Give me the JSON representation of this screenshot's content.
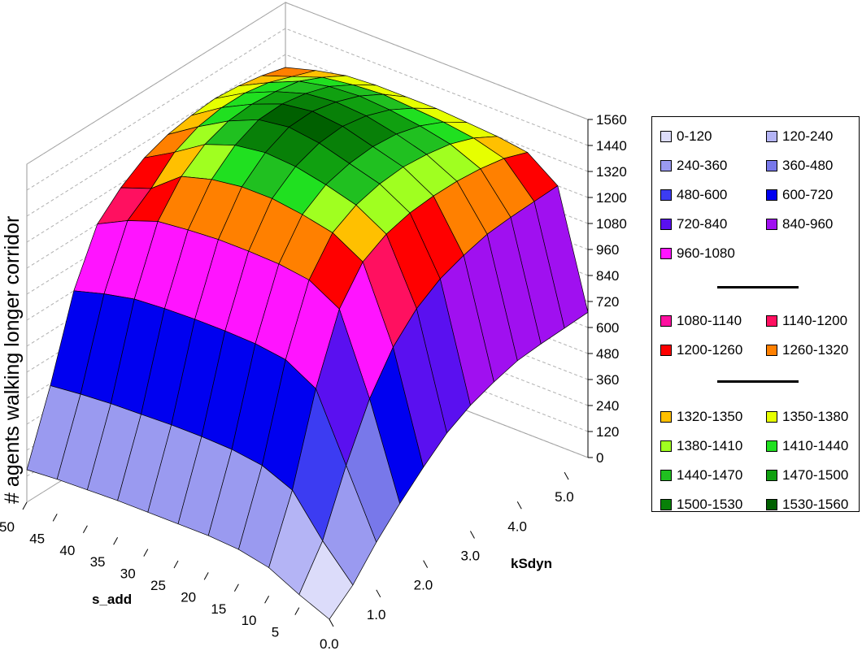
{
  "chart_data": {
    "type": "surface3d",
    "zlabel": "# agents walking longer  corridor",
    "xlabel": "s_add",
    "ylabel": "kSdyn",
    "x_ticks": [
      "50",
      "45",
      "40",
      "35",
      "30",
      "25",
      "20",
      "15",
      "10",
      "5"
    ],
    "y_ticks": [
      "0.0",
      "1.0",
      "2.0",
      "3.0",
      "4.0",
      "5.0"
    ],
    "z_ticks": [
      "0",
      "120",
      "240",
      "360",
      "480",
      "600",
      "720",
      "840",
      "960",
      "1080",
      "1200",
      "1320",
      "1440",
      "1560"
    ],
    "zlim": [
      0,
      1560
    ],
    "xlim": [
      0,
      50
    ],
    "ylim": [
      0,
      5.5
    ],
    "s_add_values": [
      0,
      5,
      10,
      15,
      20,
      25,
      30,
      35,
      40,
      45,
      50
    ],
    "kSdyn_values": [
      0,
      0.5,
      1,
      1.5,
      2,
      2.5,
      3,
      3.5,
      4,
      4.5,
      5,
      5.5
    ],
    "z_values": [
      [
        0,
        90,
        220,
        330,
        430,
        520,
        580,
        620,
        650,
        660,
        665,
        670
      ],
      [
        60,
        240,
        520,
        760,
        930,
        1040,
        1110,
        1150,
        1180,
        1190,
        1195,
        1200
      ],
      [
        130,
        420,
        820,
        1120,
        1270,
        1330,
        1360,
        1370,
        1370,
        1360,
        1340,
        1300
      ],
      [
        160,
        480,
        900,
        1200,
        1350,
        1410,
        1440,
        1450,
        1440,
        1420,
        1380,
        1320
      ],
      [
        170,
        500,
        920,
        1220,
        1380,
        1450,
        1480,
        1490,
        1480,
        1450,
        1400,
        1330
      ],
      [
        170,
        505,
        925,
        1225,
        1400,
        1480,
        1520,
        1530,
        1510,
        1470,
        1410,
        1340
      ],
      [
        170,
        505,
        925,
        1225,
        1400,
        1490,
        1540,
        1545,
        1520,
        1480,
        1420,
        1340
      ],
      [
        170,
        500,
        920,
        1215,
        1380,
        1470,
        1520,
        1525,
        1505,
        1470,
        1410,
        1340
      ],
      [
        165,
        495,
        910,
        1200,
        1340,
        1420,
        1460,
        1470,
        1460,
        1440,
        1390,
        1330
      ],
      [
        160,
        485,
        880,
        1150,
        1230,
        1330,
        1380,
        1400,
        1400,
        1380,
        1340,
        1300
      ],
      [
        150,
        470,
        840,
        1080,
        1180,
        1250,
        1290,
        1310,
        1320,
        1310,
        1290,
        1260
      ]
    ],
    "legend": [
      {
        "label": "0-120",
        "color": "#dcdcfa"
      },
      {
        "label": "120-240",
        "color": "#b4b4f5"
      },
      {
        "label": "240-360",
        "color": "#9a9af0"
      },
      {
        "label": "360-480",
        "color": "#7878ea"
      },
      {
        "label": "480-600",
        "color": "#3c3cf2"
      },
      {
        "label": "600-720",
        "color": "#0000f0"
      },
      {
        "label": "720-840",
        "color": "#5a10f0"
      },
      {
        "label": "840-960",
        "color": "#a010f0"
      },
      {
        "label": "960-1080",
        "color": "#ff14ff"
      },
      {
        "label": "1080-1140",
        "color": "#ff10a0"
      },
      {
        "label": "1140-1200",
        "color": "#ff1060"
      },
      {
        "label": "1200-1260",
        "color": "#ff0000"
      },
      {
        "label": "1260-1320",
        "color": "#ff8000"
      },
      {
        "label": "1320-1350",
        "color": "#ffc000"
      },
      {
        "label": "1350-1380",
        "color": "#e6ff00"
      },
      {
        "label": "1380-1410",
        "color": "#a0ff20"
      },
      {
        "label": "1410-1440",
        "color": "#20e020"
      },
      {
        "label": "1440-1470",
        "color": "#20c020"
      },
      {
        "label": "1470-1500",
        "color": "#10a010"
      },
      {
        "label": "1500-1530",
        "color": "#088008"
      },
      {
        "label": "1530-1560",
        "color": "#006000"
      }
    ]
  }
}
